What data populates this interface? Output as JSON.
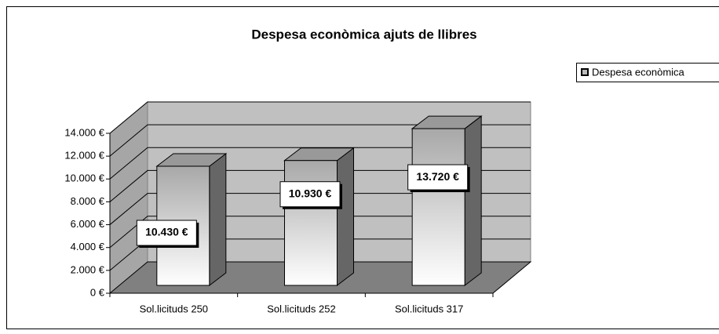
{
  "chart_data": {
    "type": "bar3d",
    "title": "Despesa econòmica ajuts de llibres",
    "categories": [
      "Sol.licituds 250",
      "Sol.licituds 252",
      "Sol.licituds 317"
    ],
    "series": [
      {
        "name": "Despesa econòmica",
        "color": "#d8d8d8",
        "values": [
          10430,
          10930,
          13720
        ],
        "value_labels": [
          "10.430 €",
          "10.930 €",
          "13.720 €"
        ]
      }
    ],
    "ylim": [
      0,
      14000
    ],
    "yticks": [
      {
        "value": 0,
        "label": "0 €"
      },
      {
        "value": 2000,
        "label": "2.000 €"
      },
      {
        "value": 4000,
        "label": "4.000 €"
      },
      {
        "value": 6000,
        "label": "6.000 €"
      },
      {
        "value": 8000,
        "label": "8.000 €"
      },
      {
        "value": 10000,
        "label": "10.000 €"
      },
      {
        "value": 12000,
        "label": "12.000 €"
      },
      {
        "value": 14000,
        "label": "14.000 €"
      }
    ],
    "grid": true,
    "legend": "right"
  }
}
